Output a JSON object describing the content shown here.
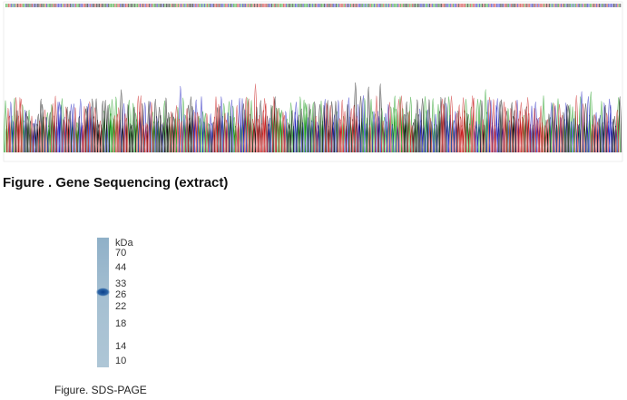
{
  "sequencing": {
    "caption": "Figure . Gene Sequencing (extract)"
  },
  "gel": {
    "unit": "kDa",
    "markers": [
      70,
      44,
      33,
      26,
      22,
      18,
      14,
      10
    ],
    "caption": "Figure. SDS-PAGE"
  }
}
